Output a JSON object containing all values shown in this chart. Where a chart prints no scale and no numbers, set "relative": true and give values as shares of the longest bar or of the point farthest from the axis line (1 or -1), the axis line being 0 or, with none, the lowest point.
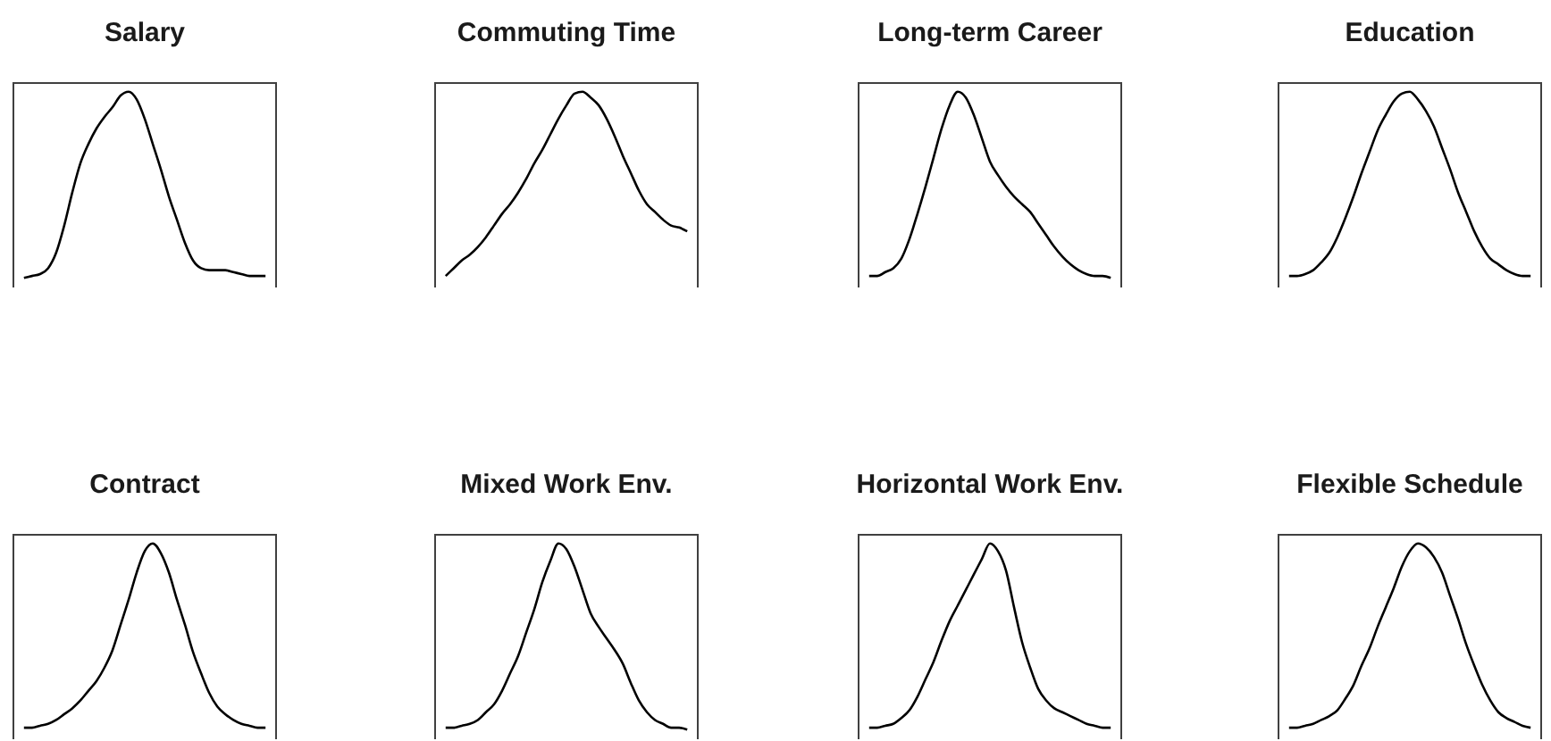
{
  "chart_data": [
    {
      "type": "line",
      "title": "Salary",
      "categories": [
        null,
        null,
        null,
        null,
        null,
        null,
        null,
        null,
        null,
        null,
        null,
        null,
        null,
        null,
        null,
        null,
        null,
        null,
        null,
        null,
        null,
        null,
        null,
        null,
        null,
        null,
        null,
        null,
        null,
        null,
        null
      ],
      "values": [
        0.04,
        0.05,
        0.06,
        0.09,
        0.17,
        0.31,
        0.48,
        0.63,
        0.73,
        0.81,
        0.87,
        0.92,
        0.98,
        1.0,
        0.96,
        0.86,
        0.73,
        0.6,
        0.46,
        0.34,
        0.22,
        0.13,
        0.09,
        0.08,
        0.08,
        0.08,
        0.07,
        0.06,
        0.05,
        0.05,
        0.05
      ],
      "color": "#000000",
      "relative": true
    },
    {
      "type": "line",
      "title": "Commuting Time",
      "categories": [
        null,
        null,
        null,
        null,
        null,
        null,
        null,
        null,
        null,
        null,
        null,
        null,
        null,
        null,
        null,
        null,
        null,
        null,
        null,
        null,
        null,
        null,
        null,
        null,
        null,
        null,
        null,
        null,
        null,
        null,
        null
      ],
      "values": [
        0.05,
        0.09,
        0.13,
        0.16,
        0.2,
        0.25,
        0.31,
        0.37,
        0.42,
        0.48,
        0.55,
        0.63,
        0.7,
        0.78,
        0.86,
        0.93,
        0.99,
        1.0,
        0.97,
        0.93,
        0.86,
        0.77,
        0.67,
        0.58,
        0.49,
        0.42,
        0.38,
        0.34,
        0.31,
        0.3,
        0.28
      ],
      "color": "#000000",
      "relative": true
    },
    {
      "type": "line",
      "title": "Long-term Career",
      "categories": [
        null,
        null,
        null,
        null,
        null,
        null,
        null,
        null,
        null,
        null,
        null,
        null,
        null,
        null,
        null,
        null,
        null,
        null,
        null,
        null,
        null,
        null,
        null,
        null,
        null,
        null,
        null,
        null,
        null,
        null,
        null
      ],
      "values": [
        0.05,
        0.05,
        0.07,
        0.09,
        0.14,
        0.24,
        0.37,
        0.51,
        0.66,
        0.81,
        0.93,
        1.0,
        0.97,
        0.88,
        0.76,
        0.64,
        0.57,
        0.51,
        0.46,
        0.42,
        0.38,
        0.32,
        0.26,
        0.2,
        0.15,
        0.11,
        0.08,
        0.06,
        0.05,
        0.05,
        0.04
      ],
      "color": "#000000",
      "relative": true
    },
    {
      "type": "line",
      "title": "Education",
      "categories": [
        null,
        null,
        null,
        null,
        null,
        null,
        null,
        null,
        null,
        null,
        null,
        null,
        null,
        null,
        null,
        null,
        null,
        null,
        null,
        null,
        null,
        null,
        null,
        null,
        null,
        null,
        null,
        null,
        null,
        null,
        null
      ],
      "values": [
        0.05,
        0.05,
        0.06,
        0.08,
        0.12,
        0.17,
        0.25,
        0.35,
        0.46,
        0.58,
        0.69,
        0.8,
        0.88,
        0.95,
        0.99,
        1.0,
        0.96,
        0.9,
        0.82,
        0.71,
        0.6,
        0.48,
        0.38,
        0.28,
        0.2,
        0.14,
        0.11,
        0.08,
        0.06,
        0.05,
        0.05
      ],
      "color": "#000000",
      "relative": true
    },
    {
      "type": "line",
      "title": "Contract",
      "categories": [
        null,
        null,
        null,
        null,
        null,
        null,
        null,
        null,
        null,
        null,
        null,
        null,
        null,
        null,
        null,
        null,
        null,
        null,
        null,
        null,
        null,
        null,
        null,
        null,
        null,
        null,
        null,
        null,
        null,
        null,
        null
      ],
      "values": [
        0.05,
        0.05,
        0.06,
        0.07,
        0.09,
        0.12,
        0.15,
        0.19,
        0.24,
        0.29,
        0.36,
        0.45,
        0.58,
        0.71,
        0.85,
        0.96,
        1.0,
        0.95,
        0.85,
        0.71,
        0.58,
        0.44,
        0.33,
        0.23,
        0.16,
        0.12,
        0.09,
        0.07,
        0.06,
        0.05,
        0.05
      ],
      "color": "#000000",
      "relative": true
    },
    {
      "type": "line",
      "title": "Mixed Work Env.",
      "categories": [
        null,
        null,
        null,
        null,
        null,
        null,
        null,
        null,
        null,
        null,
        null,
        null,
        null,
        null,
        null,
        null,
        null,
        null,
        null,
        null,
        null,
        null,
        null,
        null,
        null,
        null,
        null,
        null,
        null,
        null,
        null
      ],
      "values": [
        0.05,
        0.05,
        0.06,
        0.07,
        0.09,
        0.13,
        0.17,
        0.24,
        0.33,
        0.42,
        0.54,
        0.66,
        0.8,
        0.91,
        1.0,
        0.97,
        0.88,
        0.76,
        0.64,
        0.57,
        0.51,
        0.45,
        0.38,
        0.28,
        0.19,
        0.13,
        0.09,
        0.07,
        0.05,
        0.05,
        0.04
      ],
      "color": "#000000",
      "relative": true
    },
    {
      "type": "line",
      "title": "Horizontal Work Env.",
      "categories": [
        null,
        null,
        null,
        null,
        null,
        null,
        null,
        null,
        null,
        null,
        null,
        null,
        null,
        null,
        null,
        null,
        null,
        null,
        null,
        null,
        null,
        null,
        null,
        null,
        null,
        null,
        null,
        null,
        null,
        null,
        null
      ],
      "values": [
        0.05,
        0.05,
        0.06,
        0.07,
        0.1,
        0.14,
        0.21,
        0.3,
        0.39,
        0.5,
        0.6,
        0.68,
        0.76,
        0.84,
        0.92,
        1.0,
        0.96,
        0.86,
        0.67,
        0.49,
        0.36,
        0.25,
        0.19,
        0.15,
        0.13,
        0.11,
        0.09,
        0.07,
        0.06,
        0.05,
        0.05
      ],
      "color": "#000000",
      "relative": true
    },
    {
      "type": "line",
      "title": "Flexible Schedule",
      "categories": [
        null,
        null,
        null,
        null,
        null,
        null,
        null,
        null,
        null,
        null,
        null,
        null,
        null,
        null,
        null,
        null,
        null,
        null,
        null,
        null,
        null,
        null,
        null,
        null,
        null,
        null,
        null,
        null,
        null,
        null,
        null
      ],
      "values": [
        0.05,
        0.05,
        0.06,
        0.07,
        0.09,
        0.11,
        0.14,
        0.2,
        0.27,
        0.37,
        0.46,
        0.57,
        0.67,
        0.77,
        0.88,
        0.96,
        1.0,
        0.98,
        0.93,
        0.85,
        0.73,
        0.61,
        0.48,
        0.37,
        0.27,
        0.19,
        0.13,
        0.1,
        0.08,
        0.06,
        0.05
      ],
      "color": "#000000",
      "relative": true
    }
  ]
}
